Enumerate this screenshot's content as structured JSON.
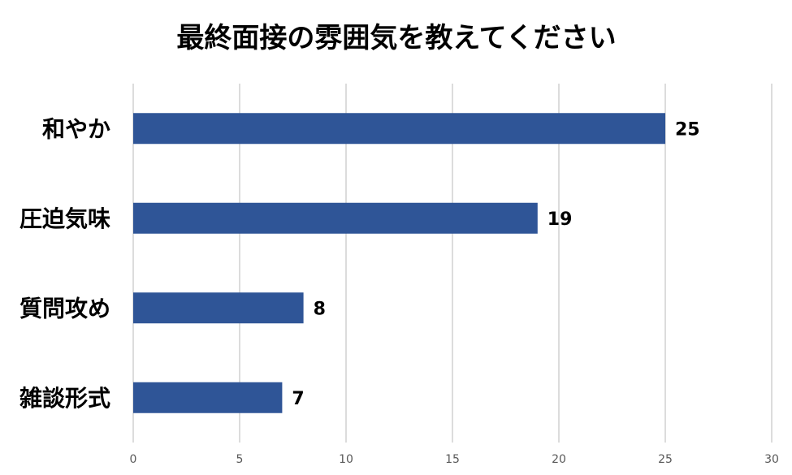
{
  "chart_data": {
    "type": "bar",
    "orientation": "horizontal",
    "title": "最終面接の雰囲気を教えてください",
    "categories": [
      "和やか",
      "圧迫気味",
      "質問攻め",
      "雑談形式"
    ],
    "values": [
      25,
      19,
      8,
      7
    ],
    "xlim": [
      0,
      30
    ],
    "xticks": [
      0,
      5,
      10,
      15,
      20,
      25,
      30
    ],
    "grid": true,
    "bar_color": "#2F5597",
    "data_labels": true,
    "legend": "none"
  }
}
